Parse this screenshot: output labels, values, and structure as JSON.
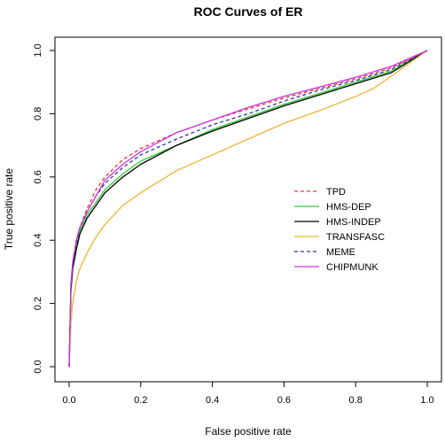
{
  "chart_data": {
    "type": "line",
    "title": "ROC Curves of ER",
    "xlabel": "False positive rate",
    "ylabel": "True positive rate",
    "xlim": [
      0,
      1
    ],
    "ylim": [
      0,
      1
    ],
    "grid": false,
    "legend_position": "right",
    "x_ticks": [
      "0.0",
      "0.2",
      "0.4",
      "0.6",
      "0.8",
      "1.0"
    ],
    "y_ticks": [
      "0.0",
      "0.2",
      "0.4",
      "0.6",
      "0.8",
      "1.0"
    ],
    "series": [
      {
        "name": "TPD",
        "color": "#ee3333",
        "dash": "dashed",
        "x": [
          0,
          0.005,
          0.01,
          0.02,
          0.03,
          0.05,
          0.075,
          0.1,
          0.15,
          0.2,
          0.3,
          0.4,
          0.5,
          0.6,
          0.7,
          0.8,
          0.9,
          1.0
        ],
        "y": [
          0,
          0.25,
          0.33,
          0.4,
          0.44,
          0.5,
          0.56,
          0.6,
          0.655,
          0.69,
          0.74,
          0.78,
          0.815,
          0.85,
          0.88,
          0.91,
          0.945,
          1.0
        ]
      },
      {
        "name": "HMS-DEP",
        "color": "#33cc33",
        "dash": "solid",
        "x": [
          0,
          0.005,
          0.01,
          0.02,
          0.03,
          0.05,
          0.075,
          0.1,
          0.15,
          0.2,
          0.3,
          0.4,
          0.5,
          0.6,
          0.7,
          0.8,
          0.9,
          1.0
        ],
        "y": [
          0,
          0.25,
          0.32,
          0.38,
          0.43,
          0.48,
          0.52,
          0.56,
          0.61,
          0.65,
          0.7,
          0.75,
          0.79,
          0.83,
          0.865,
          0.9,
          0.935,
          1.0
        ]
      },
      {
        "name": "HMS-INDEP",
        "color": "#000000",
        "dash": "solid",
        "x": [
          0,
          0.005,
          0.01,
          0.02,
          0.03,
          0.05,
          0.075,
          0.1,
          0.15,
          0.2,
          0.3,
          0.4,
          0.5,
          0.6,
          0.7,
          0.8,
          0.9,
          1.0
        ],
        "y": [
          0,
          0.24,
          0.31,
          0.37,
          0.42,
          0.47,
          0.51,
          0.55,
          0.6,
          0.64,
          0.7,
          0.745,
          0.785,
          0.825,
          0.86,
          0.895,
          0.93,
          1.0
        ]
      },
      {
        "name": "TRANSFASC",
        "color": "#f2b233",
        "dash": "solid",
        "x": [
          0,
          0.005,
          0.01,
          0.02,
          0.03,
          0.05,
          0.075,
          0.1,
          0.15,
          0.2,
          0.3,
          0.4,
          0.5,
          0.6,
          0.7,
          0.8,
          0.85,
          0.9,
          1.0
        ],
        "y": [
          0,
          0.14,
          0.2,
          0.27,
          0.31,
          0.36,
          0.41,
          0.45,
          0.51,
          0.55,
          0.62,
          0.67,
          0.72,
          0.77,
          0.81,
          0.855,
          0.88,
          0.92,
          1.0
        ]
      },
      {
        "name": "MEME",
        "color": "#3333aa",
        "dash": "dashed",
        "x": [
          0,
          0.005,
          0.01,
          0.02,
          0.03,
          0.05,
          0.075,
          0.1,
          0.15,
          0.2,
          0.3,
          0.4,
          0.5,
          0.6,
          0.7,
          0.8,
          0.9,
          1.0
        ],
        "y": [
          0,
          0.26,
          0.33,
          0.39,
          0.44,
          0.49,
          0.54,
          0.58,
          0.63,
          0.67,
          0.72,
          0.765,
          0.8,
          0.84,
          0.875,
          0.905,
          0.94,
          1.0
        ]
      },
      {
        "name": "CHIPMUNK",
        "color": "#cc33dd",
        "dash": "solid",
        "x": [
          0,
          0.005,
          0.01,
          0.02,
          0.03,
          0.05,
          0.075,
          0.1,
          0.15,
          0.2,
          0.3,
          0.4,
          0.5,
          0.6,
          0.7,
          0.8,
          0.9,
          1.0
        ],
        "y": [
          0,
          0.26,
          0.33,
          0.4,
          0.44,
          0.49,
          0.54,
          0.59,
          0.64,
          0.68,
          0.74,
          0.78,
          0.82,
          0.855,
          0.885,
          0.915,
          0.95,
          1.0
        ]
      }
    ]
  }
}
